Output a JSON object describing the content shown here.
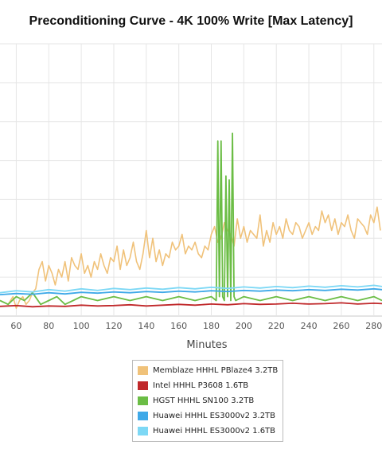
{
  "chart_data": {
    "type": "line",
    "title": "Preconditioning Curve - 4K 100% Write [Max Latency]",
    "xlabel": "Minutes",
    "ylabel": "",
    "xlim": [
      50,
      285
    ],
    "ylim": [
      0,
      70
    ],
    "grid": true,
    "legend_position": "bottom",
    "x_ticks": [
      60,
      80,
      100,
      120,
      140,
      160,
      180,
      200,
      220,
      240,
      260,
      280
    ],
    "x_tick_labels": [
      "60",
      "80",
      "100",
      "120",
      "140",
      "160",
      "180",
      "200",
      "220",
      "240",
      "260",
      "280"
    ],
    "y_gridlines": [
      0,
      10,
      20,
      30,
      40,
      50,
      60,
      70
    ],
    "series": [
      {
        "name": "Memblaze HHHL PBlaze4 3.2TB",
        "color": "#f0c27a",
        "x": [
          50,
          55,
          58,
          60,
          62,
          64,
          66,
          68,
          70,
          72,
          74,
          76,
          78,
          80,
          82,
          84,
          86,
          88,
          90,
          92,
          94,
          96,
          98,
          100,
          102,
          104,
          106,
          108,
          110,
          112,
          114,
          116,
          118,
          120,
          122,
          124,
          126,
          128,
          130,
          132,
          134,
          136,
          138,
          140,
          142,
          144,
          146,
          148,
          150,
          152,
          154,
          156,
          158,
          160,
          162,
          164,
          166,
          168,
          170,
          172,
          174,
          176,
          178,
          180,
          182,
          184,
          186,
          188,
          190,
          192,
          194,
          196,
          198,
          200,
          202,
          204,
          206,
          208,
          210,
          212,
          214,
          216,
          218,
          220,
          222,
          224,
          226,
          228,
          230,
          232,
          234,
          236,
          238,
          240,
          242,
          244,
          246,
          248,
          250,
          252,
          254,
          256,
          258,
          260,
          262,
          264,
          266,
          268,
          270,
          272,
          274,
          276,
          278,
          280,
          282,
          284
        ],
        "values": [
          4,
          3,
          5,
          2,
          4,
          5,
          3,
          4,
          6,
          7,
          12,
          14,
          9,
          13,
          11,
          8,
          12,
          10,
          14,
          9,
          15,
          13,
          12,
          16,
          11,
          13,
          10,
          14,
          12,
          16,
          13,
          11,
          15,
          14,
          18,
          12,
          17,
          13,
          15,
          19,
          14,
          12,
          16,
          22,
          15,
          20,
          14,
          17,
          13,
          16,
          15,
          19,
          17,
          18,
          21,
          16,
          18,
          17,
          19,
          16,
          15,
          18,
          17,
          21,
          23,
          19,
          20,
          24,
          22,
          21,
          18,
          25,
          20,
          23,
          19,
          22,
          21,
          20,
          26,
          18,
          22,
          19,
          24,
          21,
          23,
          20,
          25,
          22,
          21,
          24,
          23,
          20,
          22,
          24,
          21,
          23,
          22,
          27,
          24,
          26,
          22,
          25,
          21,
          24,
          23,
          26,
          22,
          20,
          25,
          24,
          23,
          21,
          26,
          24,
          28,
          22
        ]
      },
      {
        "name": "Intel HHHL P3608 1.6TB",
        "color": "#c0282a",
        "x": [
          50,
          60,
          70,
          80,
          90,
          100,
          110,
          120,
          130,
          140,
          150,
          160,
          170,
          180,
          190,
          200,
          210,
          220,
          230,
          240,
          250,
          260,
          270,
          280,
          285
        ],
        "values": [
          2.5,
          2.7,
          2.4,
          2.6,
          2.5,
          2.8,
          2.6,
          2.7,
          2.9,
          2.6,
          2.8,
          3.0,
          2.8,
          3.1,
          2.9,
          3.2,
          3.0,
          3.1,
          3.3,
          3.1,
          3.2,
          3.4,
          3.1,
          3.3,
          3.2
        ]
      },
      {
        "name": "HGST HHHL SN100 3.2TB",
        "color": "#6bbd45",
        "x": [
          50,
          55,
          60,
          65,
          70,
          75,
          80,
          85,
          90,
          95,
          100,
          110,
          120,
          130,
          140,
          150,
          160,
          170,
          180,
          183,
          184,
          185,
          186,
          187,
          188,
          189,
          190,
          191,
          192,
          193,
          194,
          195,
          200,
          210,
          220,
          230,
          240,
          250,
          260,
          270,
          280,
          285
        ],
        "values": [
          4,
          3,
          5,
          4,
          6,
          3,
          4,
          5,
          3,
          4,
          5,
          4,
          5,
          4,
          5,
          4,
          5,
          4,
          5,
          4,
          45,
          5,
          45,
          5,
          4,
          36,
          5,
          35,
          4,
          47,
          5,
          4,
          5,
          4,
          5,
          4,
          5,
          4,
          5,
          4,
          5,
          4
        ]
      },
      {
        "name": "Huawei HHHL ES3000v2 3.2TB",
        "color": "#3fa9e8",
        "x": [
          50,
          60,
          70,
          80,
          90,
          100,
          110,
          120,
          130,
          140,
          150,
          160,
          170,
          180,
          190,
          200,
          210,
          220,
          230,
          240,
          250,
          260,
          270,
          280,
          285
        ],
        "values": [
          5.5,
          5.8,
          5.6,
          6.0,
          5.7,
          6.1,
          5.9,
          6.2,
          6.0,
          6.3,
          6.1,
          6.4,
          6.2,
          6.5,
          6.3,
          6.6,
          6.4,
          6.7,
          6.5,
          6.8,
          6.6,
          6.9,
          6.7,
          7.0,
          6.8
        ]
      },
      {
        "name": "Huawei HHHL ES3000v2 1.6TB",
        "color": "#7dd8f5",
        "x": [
          50,
          60,
          70,
          80,
          90,
          100,
          110,
          120,
          130,
          140,
          150,
          160,
          170,
          180,
          190,
          200,
          210,
          220,
          230,
          240,
          250,
          260,
          270,
          280,
          285
        ],
        "values": [
          6.0,
          6.5,
          6.2,
          6.8,
          6.4,
          7.0,
          6.6,
          7.1,
          6.8,
          7.2,
          6.9,
          7.3,
          7.0,
          7.4,
          7.1,
          7.5,
          7.2,
          7.6,
          7.3,
          7.7,
          7.4,
          7.8,
          7.5,
          7.9,
          7.6
        ]
      }
    ]
  }
}
